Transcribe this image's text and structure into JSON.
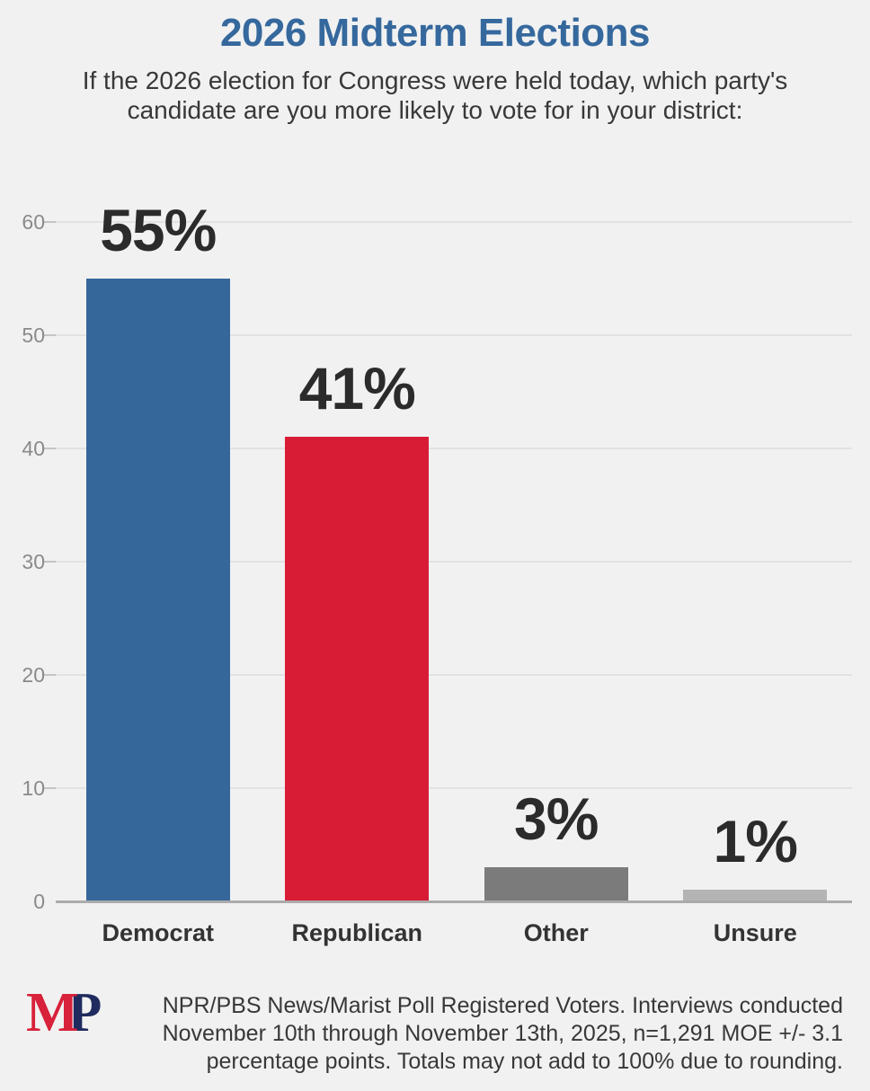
{
  "header": {
    "title": "2026 Midterm Elections",
    "subtitle": "If the 2026 election for Congress were held today, which party's candidate are you more likely to vote for in your district:",
    "subtitle_lines": [
      "If the 2026 election for Congress were held today, which party's",
      "candidate are you more likely to vote for in your district:"
    ]
  },
  "chart_data": {
    "type": "bar",
    "title": "2026 Midterm Elections",
    "categories": [
      "Democrat",
      "Republican",
      "Other",
      "Unsure"
    ],
    "values": [
      55,
      41,
      3,
      1
    ],
    "value_labels": [
      "55%",
      "41%",
      "3%",
      "1%"
    ],
    "bar_colors": [
      "#36679B",
      "#D91C36",
      "#7B7B7B",
      "#B4B4B4"
    ],
    "xlabel": "",
    "ylabel": "",
    "ylim": [
      0,
      60
    ],
    "yticks": [
      0,
      10,
      20,
      30,
      40,
      50,
      60
    ],
    "grid": true,
    "legend_position": "none"
  },
  "footer": {
    "logo_letters": [
      "M",
      "P"
    ],
    "logo_colors": [
      "#D8213A",
      "#1F2B5E"
    ],
    "source_lines": [
      "NPR/PBS News/Marist Poll Registered Voters. Interviews conducted",
      "November 10th through November 13th, 2025, n=1,291 MOE +/- 3.1",
      "percentage points. Totals may not add to 100% due to rounding."
    ]
  },
  "colors": {
    "background": "#F1F1F1",
    "title": "#35689D",
    "subtitle_text": "#383838",
    "value_label": "#2B2B2B",
    "category_label": "#333333",
    "tick_label": "#8A8A8A",
    "gridline": "#E2E2E2",
    "axis_line": "#ABABAB"
  }
}
